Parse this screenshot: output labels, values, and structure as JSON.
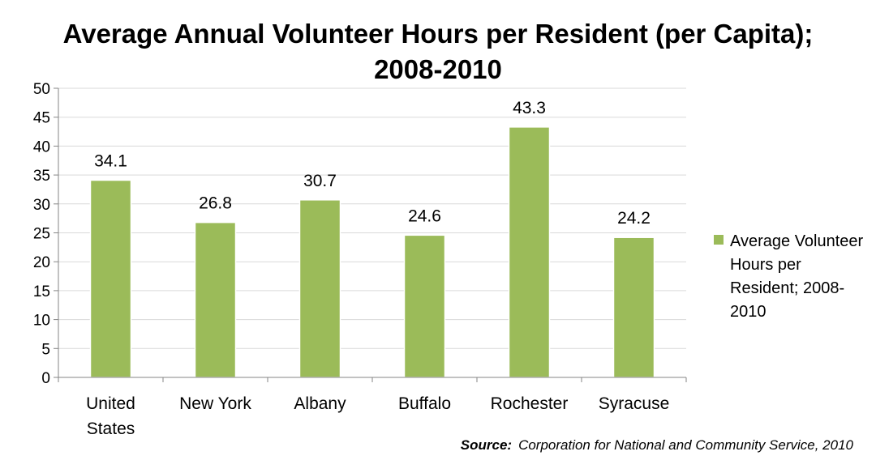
{
  "chart_data": {
    "type": "bar",
    "title": "Average Annual Volunteer Hours per Resident (per Capita); 2008-2010",
    "categories": [
      "United States",
      "New York",
      "Albany",
      "Buffalo",
      "Rochester",
      "Syracuse"
    ],
    "category_lines": [
      [
        "United",
        "States"
      ],
      [
        "New York"
      ],
      [
        "Albany"
      ],
      [
        "Buffalo"
      ],
      [
        "Rochester"
      ],
      [
        "Syracuse"
      ]
    ],
    "series": [
      {
        "name": "Average Volunteer Hours per Resident; 2008-2010",
        "values": [
          34.1,
          26.8,
          30.7,
          24.6,
          43.3,
          24.2
        ],
        "labels": [
          "34.1",
          "26.8",
          "30.7",
          "24.6",
          "43.3",
          "24.2"
        ],
        "color": "#9bbb59"
      }
    ],
    "ylim": [
      0,
      50
    ],
    "yticks": [
      "0",
      "5",
      "10",
      "15",
      "20",
      "25",
      "30",
      "35",
      "40",
      "45",
      "50"
    ],
    "ytick_values": [
      0,
      5,
      10,
      15,
      20,
      25,
      30,
      35,
      40,
      45,
      50
    ],
    "grid": true,
    "legend_position": "right",
    "xlabel": "",
    "ylabel": ""
  },
  "source": {
    "prefix": "Source:",
    "text": "Corporation for National and Community Service, 2010"
  }
}
